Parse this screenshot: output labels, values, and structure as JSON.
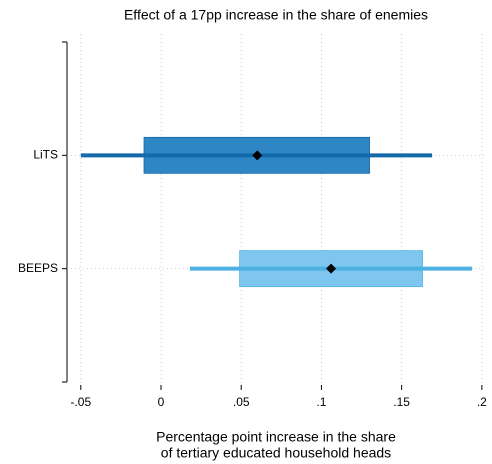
{
  "chart_data": {
    "type": "coefplot",
    "title": "Effect of a 17pp increase in the share of enemies",
    "xlabel": [
      "Percentage point increase in the share",
      "of tertiary educated household heads"
    ],
    "categories": [
      "LiTS",
      "BEEPS"
    ],
    "values": [
      0.06,
      0.106
    ],
    "box_low": [
      -0.0106,
      0.049
    ],
    "box_high": [
      0.13,
      0.163
    ],
    "ci_low": [
      -0.05,
      0.018
    ],
    "ci_high": [
      0.169,
      0.194
    ],
    "box_colors": [
      "#2f86c4",
      "#7ec5ef"
    ],
    "line_colors": [
      "#1369a9",
      "#4cb1e2"
    ],
    "point_color": "#000000",
    "xlim": [
      -0.0586,
      0.2032
    ],
    "xticks": [
      {
        "value": -0.05,
        "label": "-.05"
      },
      0,
      {
        "value": 0.05,
        "label": ".05"
      },
      {
        "value": 0.1,
        "label": ".1"
      },
      {
        "value": 0.15,
        "label": ".15"
      },
      {
        "value": 0.2,
        "label": ".2"
      }
    ],
    "grid": true
  }
}
